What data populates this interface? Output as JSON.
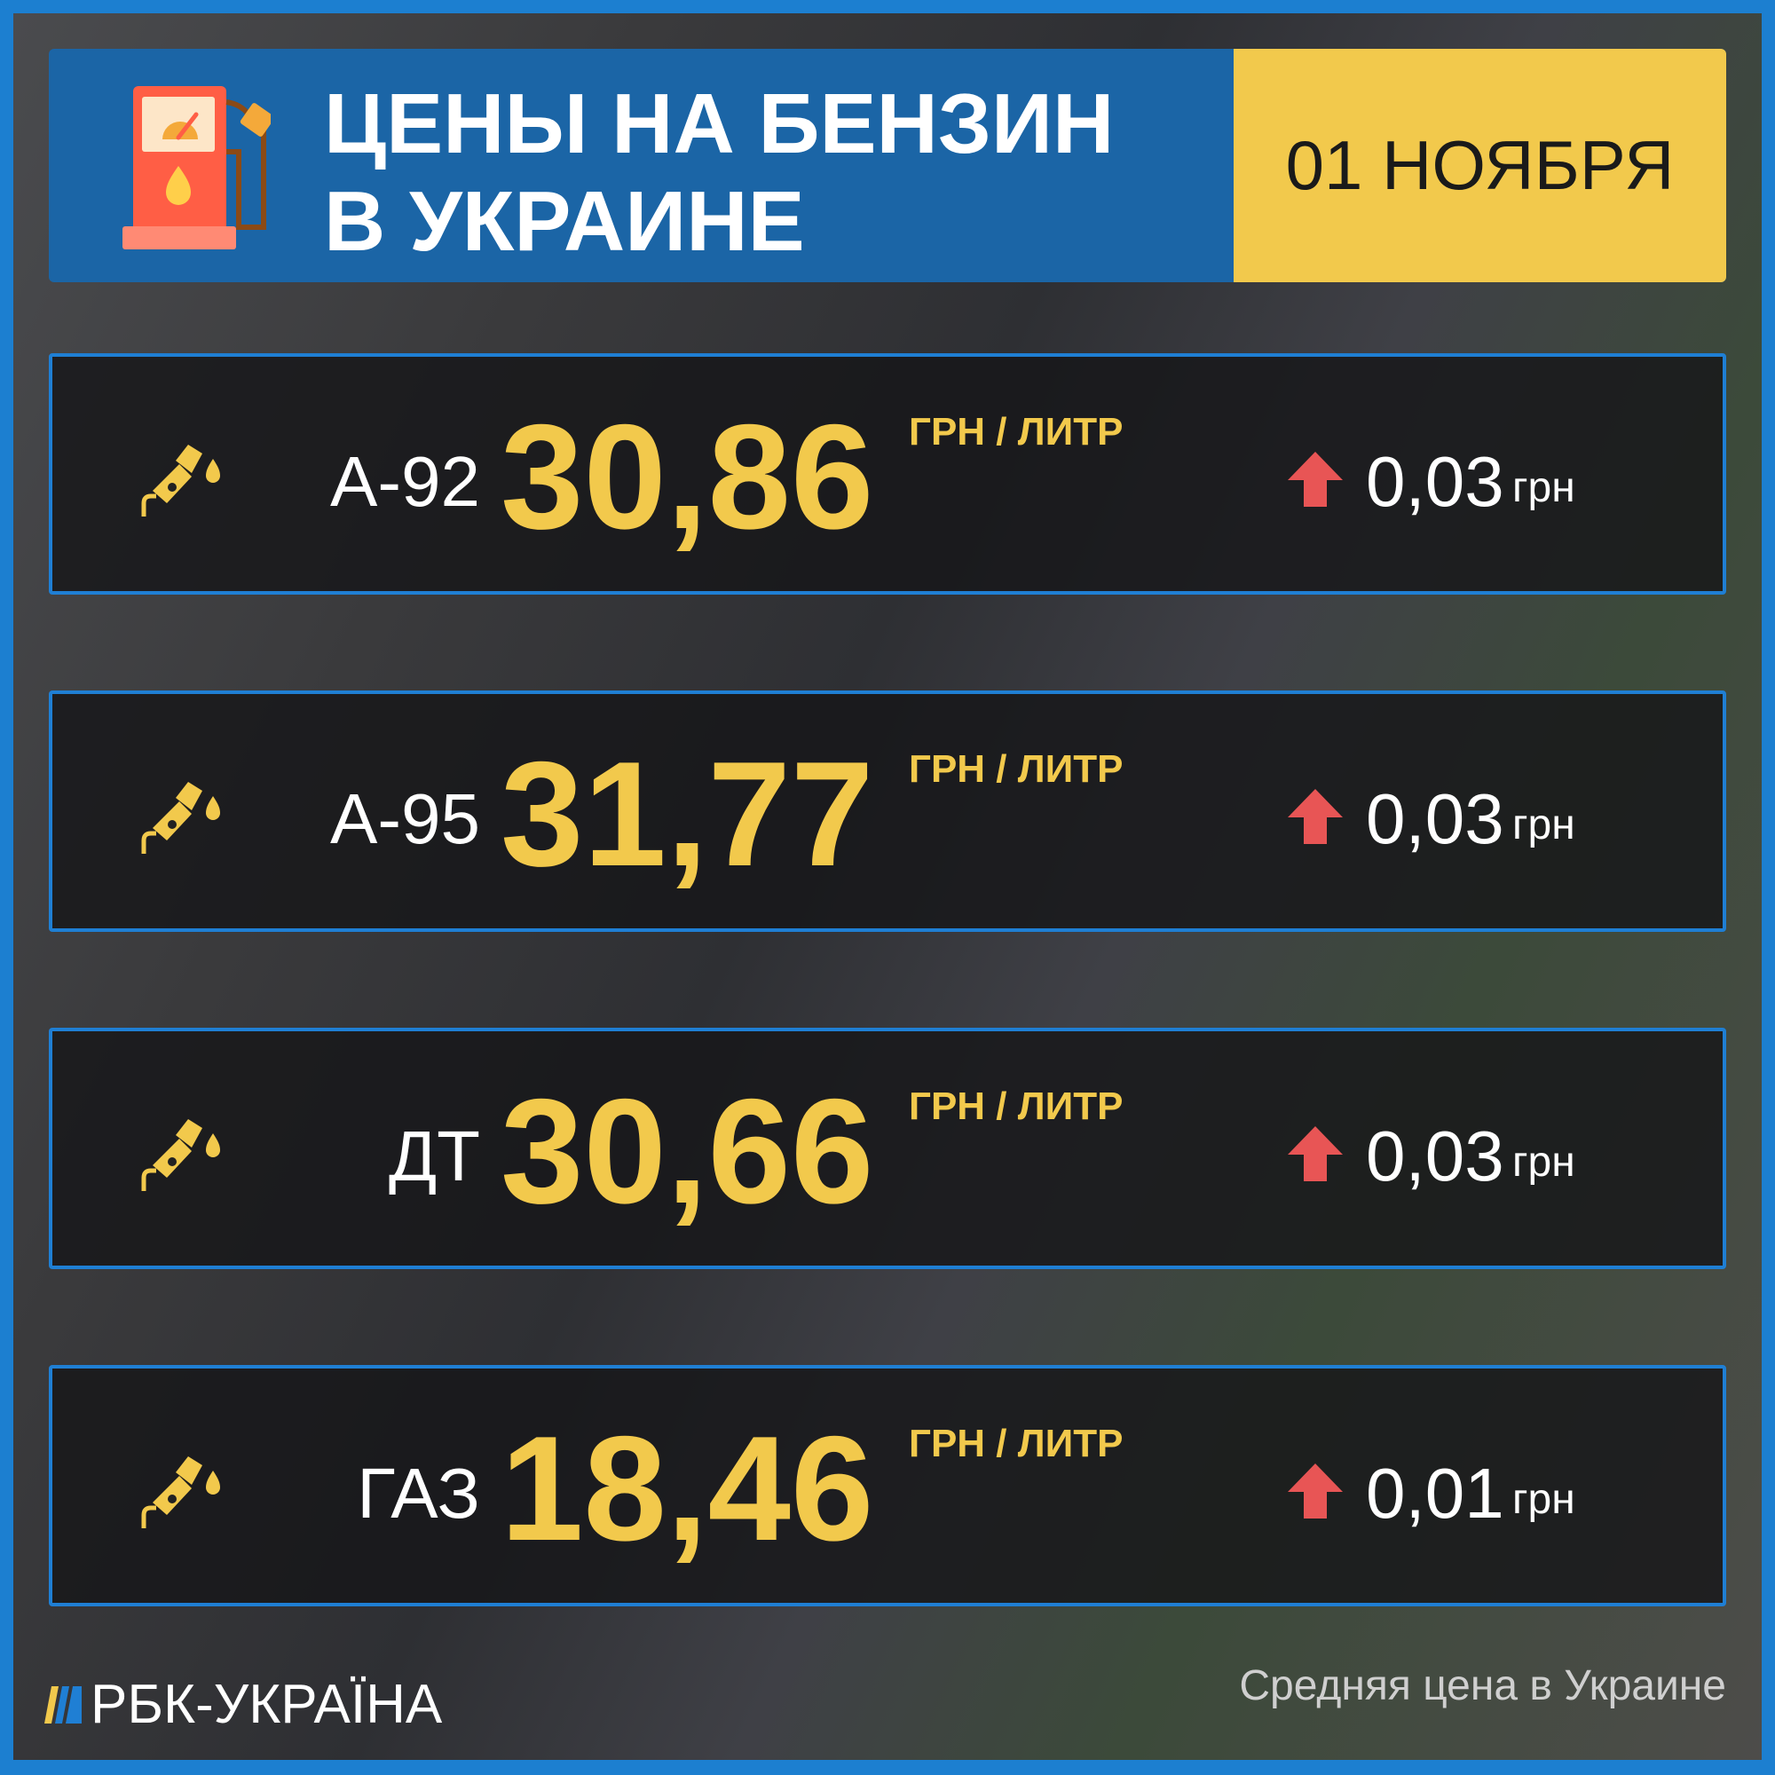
{
  "header": {
    "title_line1": "ЦЕНЫ НА БЕНЗИН",
    "title_line2": "В УКРАИНЕ",
    "date": "01 НОЯБРЯ"
  },
  "rows": [
    {
      "label": "А-92",
      "price": "30,86",
      "unit": "ГРН / ЛИТР",
      "change": "0,03",
      "change_unit": "грн",
      "direction": "up"
    },
    {
      "label": "А-95",
      "price": "31,77",
      "unit": "ГРН / ЛИТР",
      "change": "0,03",
      "change_unit": "грн",
      "direction": "up"
    },
    {
      "label": "ДТ",
      "price": "30,66",
      "unit": "ГРН / ЛИТР",
      "change": "0,03",
      "change_unit": "грн",
      "direction": "up"
    },
    {
      "label": "ГАЗ",
      "price": "18,46",
      "unit": "ГРН / ЛИТР",
      "change": "0,01",
      "change_unit": "грн",
      "direction": "up"
    }
  ],
  "footer": {
    "logo": "РБК-УКРАЇНА",
    "note": "Средняя цена в Украине"
  },
  "colors": {
    "accent": "#f2c94c",
    "border": "#1f7fd4",
    "header": "#1b65a6",
    "up_arrow": "#e85555"
  }
}
